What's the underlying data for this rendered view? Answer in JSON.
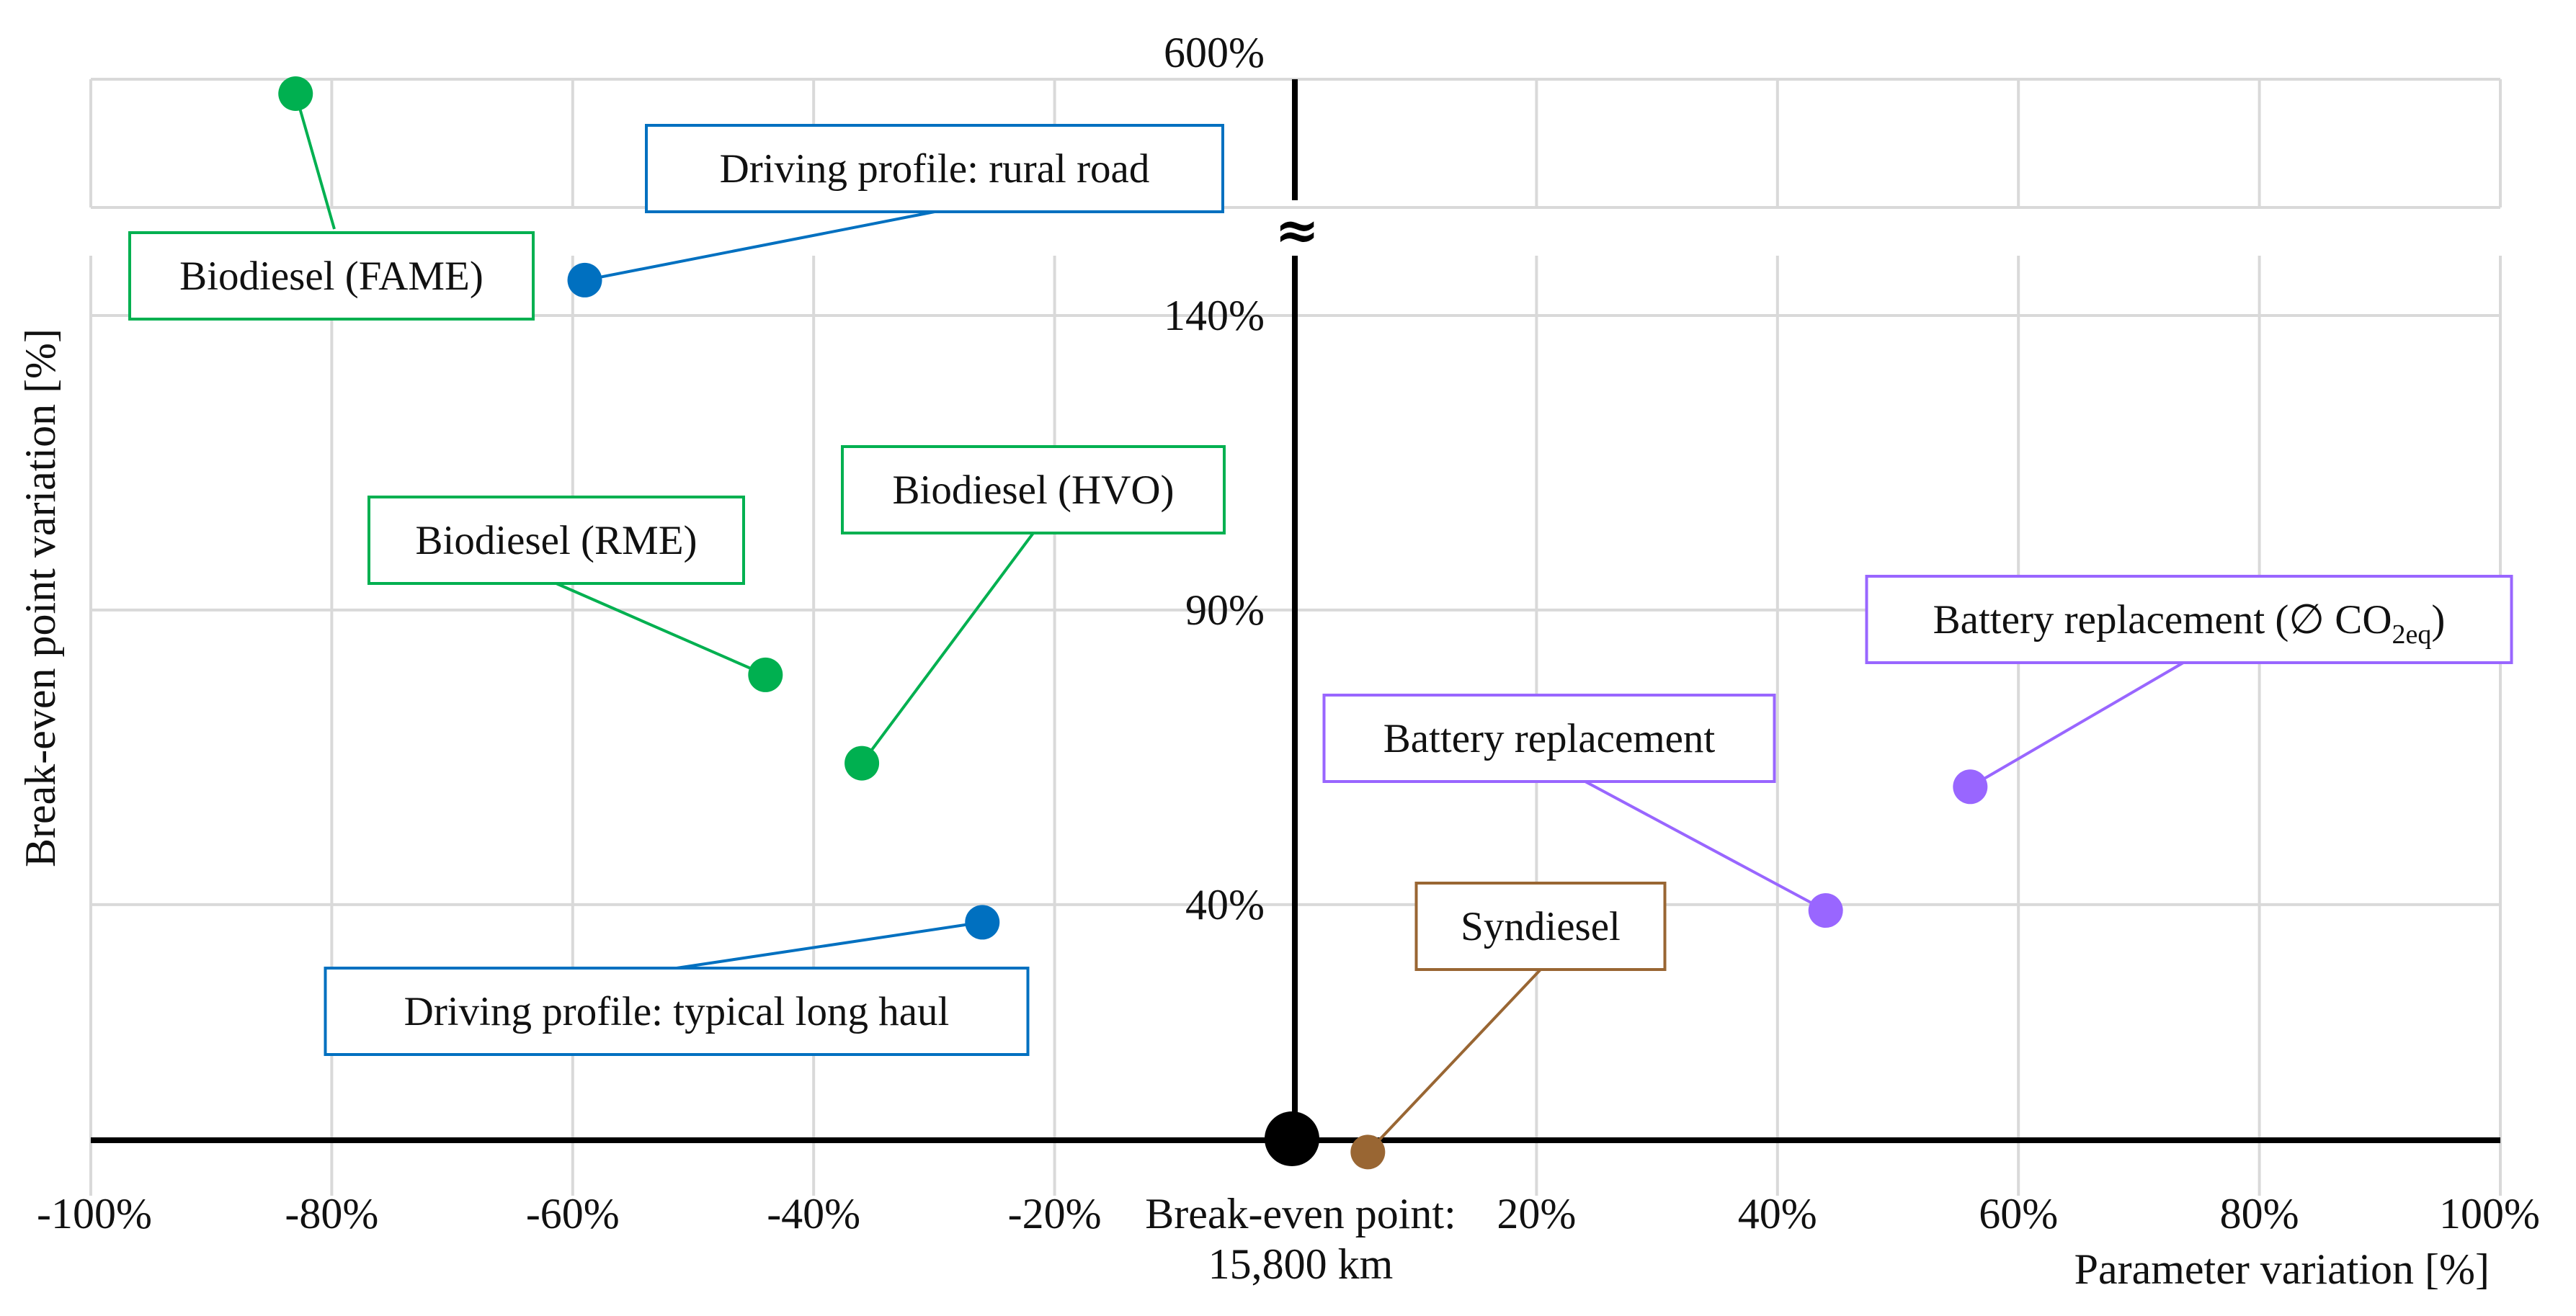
{
  "chart_data": {
    "type": "scatter",
    "xlabel": "Parameter variation [%]",
    "ylabel": "Break-even point variation [%]",
    "xlim": [
      -100,
      100
    ],
    "x_ticks": [
      "-100%",
      "-80%",
      "-60%",
      "-40%",
      "-20%",
      "20%",
      "40%",
      "60%",
      "80%",
      "100%"
    ],
    "y_ticks": [
      "40%",
      "90%",
      "140%",
      "600%"
    ],
    "y_axis_break": true,
    "y_break_symbol": "≈",
    "grid": true,
    "origin": {
      "label_line1": "Break-even point:",
      "label_line2": "15,800 km",
      "x": 0,
      "y": 0
    },
    "colors": {
      "biodiesel": "#00b050",
      "driving_profile": "#0070c0",
      "battery": "#9966ff",
      "syndiesel": "#996633",
      "axis": "#000000",
      "grid": "#d9d9d9"
    },
    "points": [
      {
        "label": "Biodiesel (FAME)",
        "x": -83,
        "y": 600,
        "group": "biodiesel"
      },
      {
        "label": "Driving profile: rural road",
        "x": -59,
        "y": 146,
        "group": "driving_profile"
      },
      {
        "label": "Biodiesel (RME)",
        "x": -44,
        "y": 79,
        "group": "biodiesel"
      },
      {
        "label": "Biodiesel (HVO)",
        "x": -36,
        "y": 64,
        "group": "biodiesel"
      },
      {
        "label": "Driving profile: typical long haul",
        "x": -26,
        "y": 37,
        "group": "driving_profile"
      },
      {
        "label": "Syndiesel",
        "x": 6,
        "y": -2,
        "group": "syndiesel"
      },
      {
        "label": "Battery replacement",
        "x": 44,
        "y": 39,
        "group": "battery"
      },
      {
        "label": "Battery replacement (∅ CO",
        "label_sub": "2eq",
        "label_end": ")",
        "x": 56,
        "y": 60,
        "group": "battery"
      }
    ]
  }
}
